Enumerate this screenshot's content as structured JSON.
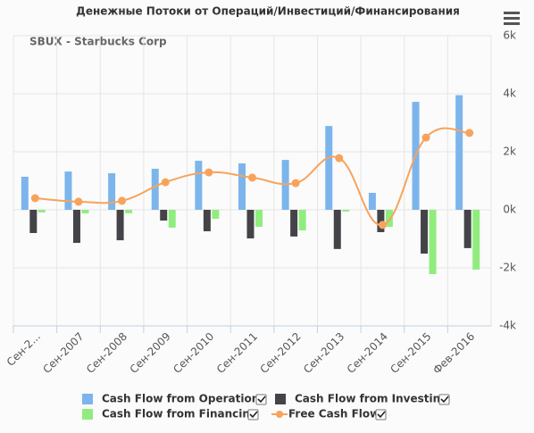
{
  "chart_data": {
    "type": "bar",
    "title": "Денежные Потоки от Операций/Инвестиций/Финансирования",
    "subtitle": "SBUX - Starbucks Corp",
    "categories": [
      "Сен-2...",
      "Сен-2007",
      "Сен-2008",
      "Сен-2009",
      "Сен-2010",
      "Сен-2011",
      "Сен-2012",
      "Сен-2013",
      "Сен-2014",
      "Сен-2015",
      "Фев-2016"
    ],
    "series": [
      {
        "name": "Cash Flow from Operations",
        "type": "bar",
        "color": "#7cb5ec",
        "values": [
          1140,
          1320,
          1260,
          1415,
          1690,
          1600,
          1720,
          2890,
          585,
          3720,
          3950
        ]
      },
      {
        "name": "Cash Flow from Investing",
        "type": "bar",
        "color": "#434348",
        "values": [
          -800,
          -1140,
          -1050,
          -370,
          -740,
          -985,
          -920,
          -1350,
          -770,
          -1510,
          -1320
        ]
      },
      {
        "name": "Cash Flow from Financing",
        "type": "bar",
        "color": "#90ed7d",
        "values": [
          -90,
          -120,
          -120,
          -615,
          -310,
          -585,
          -710,
          -60,
          -585,
          -2215,
          -2060
        ]
      },
      {
        "name": "Free Cash Flow",
        "type": "line",
        "color": "#f7a35c",
        "values": [
          400,
          280,
          310,
          950,
          1290,
          1110,
          920,
          1780,
          -520,
          2490,
          2650
        ]
      }
    ],
    "ylim": [
      -4000,
      6000
    ],
    "yticks": [
      {
        "value": -4000,
        "label": "-4k"
      },
      {
        "value": -2000,
        "label": "-2k"
      },
      {
        "value": 0,
        "label": "0k"
      },
      {
        "value": 2000,
        "label": "2k"
      },
      {
        "value": 4000,
        "label": "4k"
      },
      {
        "value": 6000,
        "label": "6k"
      }
    ],
    "grid": true
  }
}
